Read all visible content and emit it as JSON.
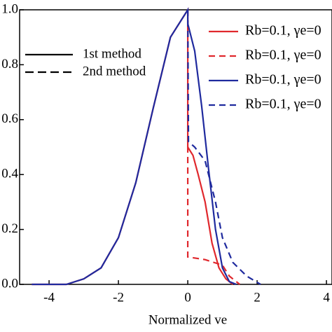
{
  "chart_data": {
    "type": "line",
    "xlabel": "Normalized ve",
    "xlim": [
      -4.85,
      4.16
    ],
    "ylim": [
      0,
      1.0
    ],
    "xticks": [
      -4,
      -2,
      0,
      2,
      4
    ],
    "yticks": [
      {
        "value": 0,
        "label": "0.0"
      },
      {
        "value": 0.2,
        "label": "0.2"
      },
      {
        "value": 0.4,
        "label": "0.4"
      },
      {
        "value": 0.6,
        "label": "0.6"
      },
      {
        "value": 0.8,
        "label": "0.8"
      },
      {
        "value": 1.0,
        "label": "1.0"
      }
    ],
    "method_legend": [
      {
        "name": "1st method",
        "dash": false
      },
      {
        "name": "2nd method",
        "dash": true
      }
    ],
    "series": [
      {
        "name": "Rb=0.1, γe=0",
        "color": "#e0282d",
        "dash": false,
        "x": [
          -4.5,
          -4,
          -3.5,
          -3,
          -2.5,
          -2,
          -1.5,
          -1,
          -0.5,
          0,
          0,
          0.15,
          0.3,
          0.5,
          0.7,
          0.9,
          1.1,
          1.3
        ],
        "values": [
          0,
          0,
          0,
          0.02,
          0.06,
          0.17,
          0.37,
          0.64,
          0.9,
          1,
          0.5,
          0.47,
          0.4,
          0.3,
          0.15,
          0.06,
          0.02,
          0
        ]
      },
      {
        "name": "Rb=0.1, γe=0",
        "color": "#e0282d",
        "dash": true,
        "x": [
          0,
          0,
          0.5,
          1.0,
          1.2,
          1.5
        ],
        "values": [
          1,
          0.1,
          0.09,
          0.07,
          0.03,
          0
        ]
      },
      {
        "name": "Rb=0.1, γe=0",
        "color": "#1f2a9e",
        "dash": false,
        "x": [
          -4.5,
          -4,
          -3.5,
          -3,
          -2.5,
          -2,
          -1.5,
          -1,
          -0.5,
          0,
          0,
          0.2,
          0.4,
          0.6,
          0.8,
          1.0,
          1.2,
          1.4
        ],
        "values": [
          0,
          0,
          0,
          0.02,
          0.06,
          0.17,
          0.37,
          0.64,
          0.9,
          1,
          0.95,
          0.85,
          0.65,
          0.42,
          0.2,
          0.06,
          0.01,
          0
        ]
      },
      {
        "name": "Rb=0.1, γe=0",
        "color": "#1f2a9e",
        "dash": true,
        "x": [
          0,
          0.02,
          0.2,
          0.5,
          0.8,
          1.0,
          1.3,
          1.7,
          2.1
        ],
        "values": [
          1,
          0.52,
          0.5,
          0.45,
          0.3,
          0.17,
          0.08,
          0.03,
          0
        ]
      }
    ]
  }
}
